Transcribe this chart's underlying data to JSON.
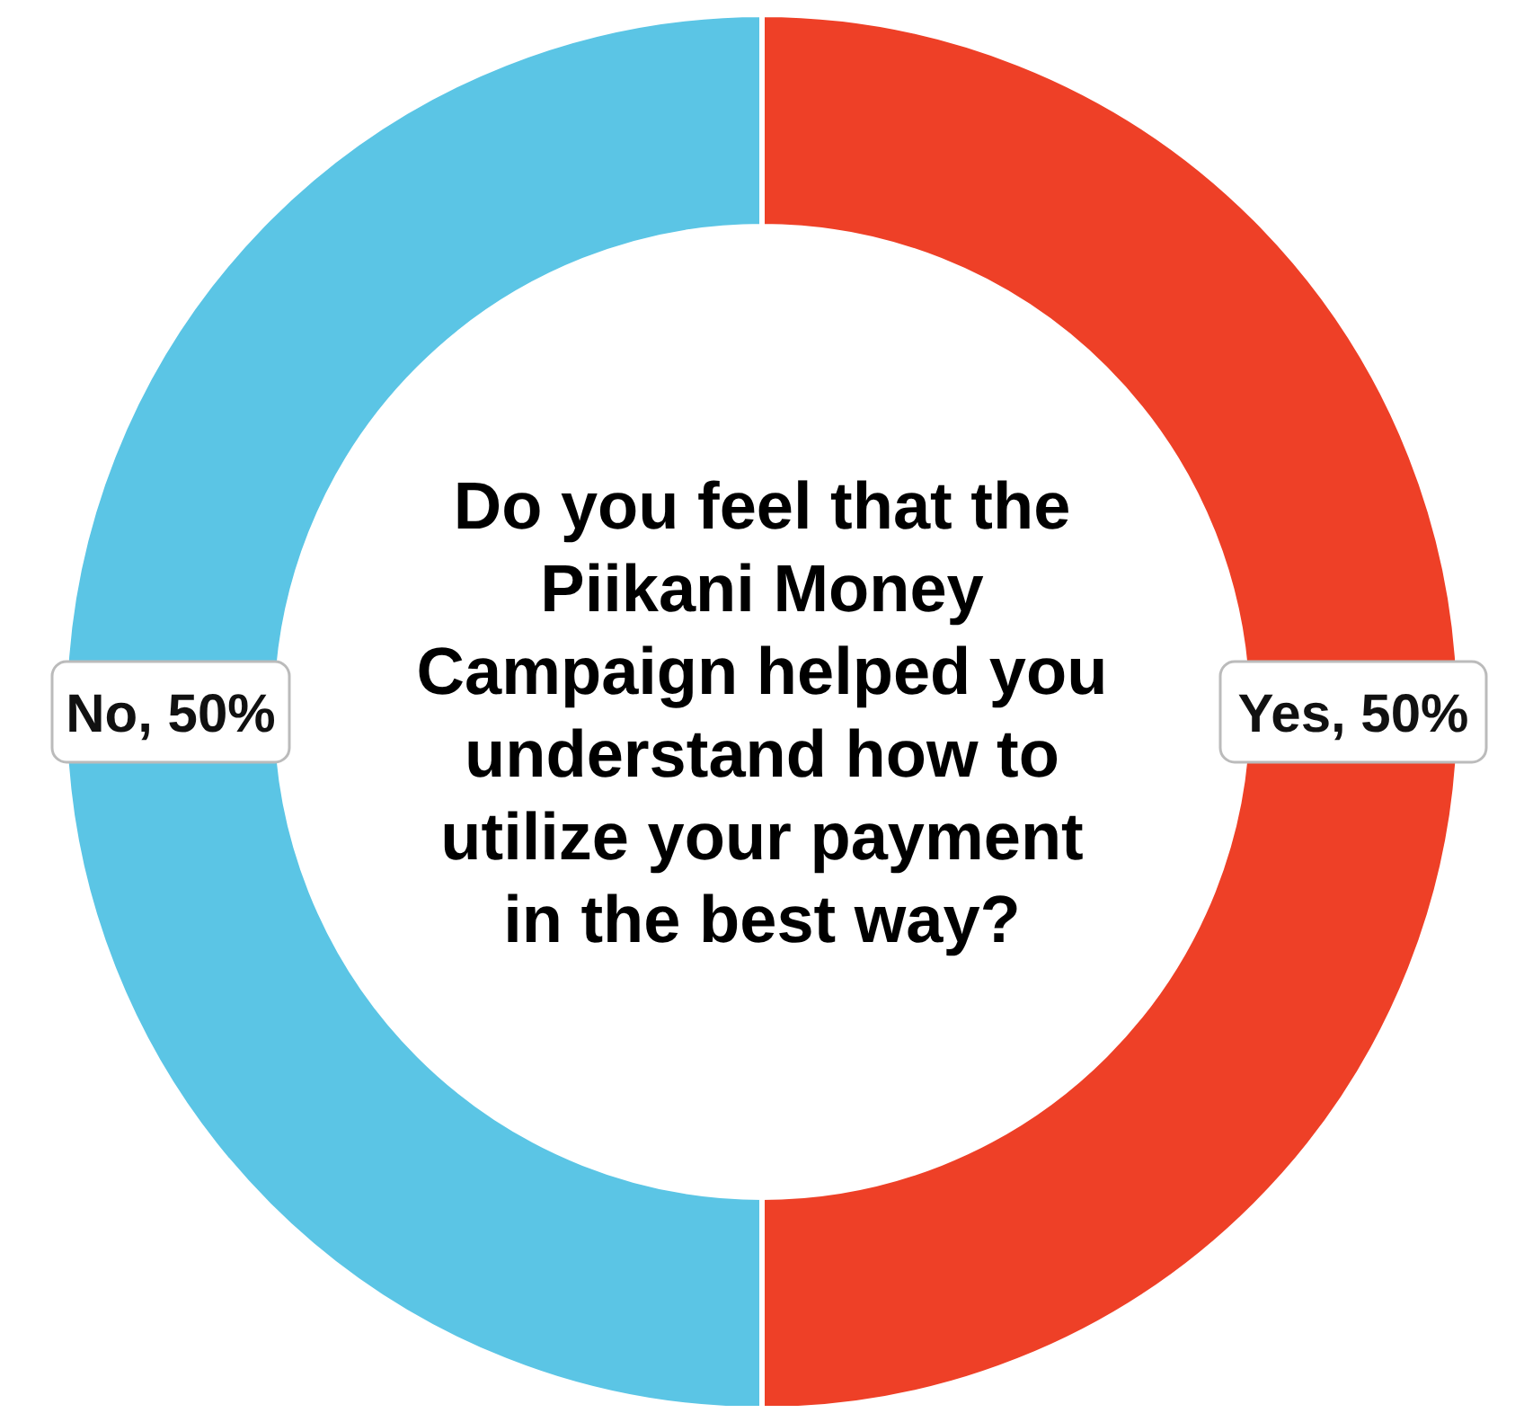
{
  "chart_data": {
    "type": "donut",
    "title": "Do you feel that the Piikani Money Campaign helped you understand how to utilize your payment in the best way?",
    "categories": [
      "Yes, 50%",
      "No, 50%"
    ],
    "values": [
      50,
      50
    ],
    "colors": [
      "#ee4027",
      "#5bc5e5"
    ]
  }
}
